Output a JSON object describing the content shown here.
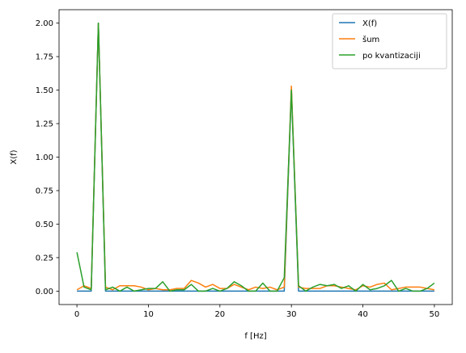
{
  "chart_data": {
    "type": "line",
    "title": "",
    "xlabel": "f [Hz]",
    "ylabel": "X(f)",
    "xlim": [
      -2.5,
      52.5
    ],
    "ylim": [
      -0.1,
      2.1
    ],
    "xticks": [
      0,
      10,
      20,
      30,
      40,
      50
    ],
    "xtick_labels": [
      "0",
      "10",
      "20",
      "30",
      "40",
      "50"
    ],
    "yticks": [
      0.0,
      0.25,
      0.5,
      0.75,
      1.0,
      1.25,
      1.5,
      1.75,
      2.0
    ],
    "ytick_labels": [
      "0.00",
      "0.25",
      "0.50",
      "0.75",
      "1.00",
      "1.25",
      "1.50",
      "1.75",
      "2.00"
    ],
    "grid": false,
    "legend_position": "top-right",
    "x": [
      0,
      1,
      2,
      3,
      4,
      5,
      6,
      7,
      8,
      9,
      10,
      11,
      12,
      13,
      14,
      15,
      16,
      17,
      18,
      19,
      20,
      21,
      22,
      23,
      24,
      25,
      26,
      27,
      28,
      29,
      30,
      31,
      32,
      33,
      34,
      35,
      36,
      37,
      38,
      39,
      40,
      41,
      42,
      43,
      44,
      45,
      46,
      47,
      48,
      49,
      50
    ],
    "series": [
      {
        "name": "X(f)",
        "color": "#1f77b4",
        "values": [
          0,
          0,
          0,
          2.0,
          0,
          0,
          0,
          0,
          0,
          0,
          0,
          0,
          0,
          0,
          0,
          0,
          0,
          0,
          0,
          0,
          0,
          0,
          0,
          0,
          0,
          0,
          0,
          0,
          0,
          0,
          1.5,
          0,
          0,
          0,
          0,
          0,
          0,
          0,
          0,
          0,
          0,
          0,
          0,
          0,
          0,
          0,
          0,
          0,
          0,
          0,
          0
        ]
      },
      {
        "name": "šum",
        "color": "#ff7f0e",
        "values": [
          0.01,
          0.04,
          0.02,
          2.0,
          0.03,
          0.01,
          0.04,
          0.04,
          0.04,
          0.03,
          0.01,
          0.02,
          0.01,
          0.01,
          0.02,
          0.02,
          0.08,
          0.06,
          0.03,
          0.05,
          0.02,
          0.02,
          0.05,
          0.03,
          0.01,
          0.03,
          0.02,
          0.03,
          0.01,
          0.03,
          1.53,
          0.03,
          0.02,
          0.02,
          0.02,
          0.04,
          0.04,
          0.03,
          0.02,
          0.01,
          0.04,
          0.03,
          0.05,
          0.06,
          0.01,
          0.02,
          0.03,
          0.03,
          0.03,
          0.02,
          0.01
        ]
      },
      {
        "name": "po kvantizaciji",
        "color": "#2ca02c",
        "values": [
          0.29,
          0.03,
          0.01,
          2.0,
          0.01,
          0.03,
          0.0,
          0.03,
          0.0,
          0.01,
          0.02,
          0.02,
          0.07,
          0.0,
          0.01,
          0.01,
          0.05,
          0.0,
          0.0,
          0.02,
          0.0,
          0.02,
          0.07,
          0.04,
          0.0,
          0.0,
          0.06,
          0.0,
          0.0,
          0.1,
          1.5,
          0.04,
          0.0,
          0.03,
          0.05,
          0.04,
          0.05,
          0.02,
          0.04,
          0.0,
          0.05,
          0.01,
          0.02,
          0.04,
          0.08,
          0.0,
          0.02,
          0.0,
          0.0,
          0.02,
          0.06
        ]
      }
    ]
  }
}
